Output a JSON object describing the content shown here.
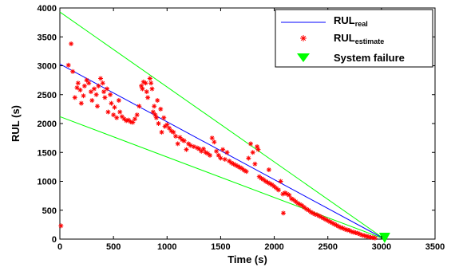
{
  "chart_data": {
    "type": "scatter",
    "xlabel": "Time (s)",
    "ylabel": "RUL (s)",
    "xlim": [
      0,
      3500
    ],
    "ylim": [
      0,
      4000
    ],
    "xticks": [
      "0",
      "500",
      "1000",
      "1500",
      "2000",
      "2500",
      "3000",
      "3500"
    ],
    "yticks": [
      "0",
      "500",
      "1000",
      "1500",
      "2000",
      "2500",
      "3000",
      "3500",
      "4000"
    ],
    "grid": false,
    "legend_position": "top-right",
    "legend": [
      {
        "main": "RUL",
        "sub": "real",
        "marker": "line",
        "color": "#0000ff"
      },
      {
        "main": "RUL",
        "sub": "estimate",
        "marker": "star",
        "color": "#ff0000"
      },
      {
        "main": "System failure",
        "sub": "",
        "marker": "triangle",
        "color": "#00ff00"
      }
    ],
    "series": [
      {
        "name": "RUL_real",
        "kind": "line",
        "color": "#0000ff",
        "points": [
          [
            0,
            3030
          ],
          [
            3030,
            0
          ]
        ]
      },
      {
        "name": "upper_bound",
        "kind": "line",
        "color": "#00ff00",
        "points": [
          [
            0,
            3930
          ],
          [
            3030,
            0
          ]
        ]
      },
      {
        "name": "lower_bound",
        "kind": "line",
        "color": "#00ff00",
        "points": [
          [
            0,
            2120
          ],
          [
            3030,
            0
          ]
        ]
      },
      {
        "name": "RUL_estimate",
        "kind": "scatter",
        "color": "#ff0000",
        "points": [
          [
            10,
            230
          ],
          [
            80,
            3010
          ],
          [
            105,
            3380
          ],
          [
            120,
            2900
          ],
          [
            140,
            2450
          ],
          [
            160,
            2620
          ],
          [
            170,
            2700
          ],
          [
            190,
            2580
          ],
          [
            200,
            2350
          ],
          [
            220,
            2480
          ],
          [
            230,
            2650
          ],
          [
            250,
            2750
          ],
          [
            270,
            2700
          ],
          [
            290,
            2550
          ],
          [
            300,
            2400
          ],
          [
            320,
            2600
          ],
          [
            340,
            2500
          ],
          [
            350,
            2300
          ],
          [
            360,
            2650
          ],
          [
            380,
            2780
          ],
          [
            400,
            2700
          ],
          [
            410,
            2550
          ],
          [
            420,
            2450
          ],
          [
            440,
            2600
          ],
          [
            450,
            2200
          ],
          [
            470,
            2500
          ],
          [
            480,
            2350
          ],
          [
            500,
            2150
          ],
          [
            510,
            2280
          ],
          [
            530,
            2100
          ],
          [
            550,
            2400
          ],
          [
            560,
            2200
          ],
          [
            580,
            2120
          ],
          [
            600,
            2080
          ],
          [
            620,
            2050
          ],
          [
            640,
            2060
          ],
          [
            660,
            2030
          ],
          [
            680,
            2020
          ],
          [
            700,
            2080
          ],
          [
            720,
            2150
          ],
          [
            740,
            2300
          ],
          [
            760,
            2650
          ],
          [
            770,
            2600
          ],
          [
            780,
            2720
          ],
          [
            800,
            2700
          ],
          [
            810,
            2550
          ],
          [
            820,
            2450
          ],
          [
            840,
            2780
          ],
          [
            850,
            2700
          ],
          [
            860,
            2600
          ],
          [
            870,
            2200
          ],
          [
            880,
            2300
          ],
          [
            890,
            2150
          ],
          [
            900,
            2100
          ],
          [
            910,
            2400
          ],
          [
            920,
            2000
          ],
          [
            940,
            2250
          ],
          [
            950,
            1850
          ],
          [
            970,
            2100
          ],
          [
            980,
            1950
          ],
          [
            1000,
            1980
          ],
          [
            1020,
            1920
          ],
          [
            1040,
            1870
          ],
          [
            1060,
            1850
          ],
          [
            1080,
            1780
          ],
          [
            1100,
            1650
          ],
          [
            1120,
            1760
          ],
          [
            1140,
            1720
          ],
          [
            1160,
            1700
          ],
          [
            1180,
            1550
          ],
          [
            1200,
            1650
          ],
          [
            1220,
            1620
          ],
          [
            1250,
            1600
          ],
          [
            1280,
            1580
          ],
          [
            1300,
            1560
          ],
          [
            1320,
            1520
          ],
          [
            1340,
            1560
          ],
          [
            1360,
            1500
          ],
          [
            1380,
            1480
          ],
          [
            1400,
            1450
          ],
          [
            1420,
            1750
          ],
          [
            1440,
            1680
          ],
          [
            1460,
            1520
          ],
          [
            1480,
            1450
          ],
          [
            1500,
            1400
          ],
          [
            1520,
            1550
          ],
          [
            1540,
            1380
          ],
          [
            1560,
            1500
          ],
          [
            1580,
            1350
          ],
          [
            1600,
            1320
          ],
          [
            1620,
            1300
          ],
          [
            1640,
            1280
          ],
          [
            1660,
            1260
          ],
          [
            1680,
            1240
          ],
          [
            1700,
            1220
          ],
          [
            1720,
            1190
          ],
          [
            1740,
            1170
          ],
          [
            1760,
            1400
          ],
          [
            1780,
            1650
          ],
          [
            1800,
            1500
          ],
          [
            1820,
            1300
          ],
          [
            1840,
            1600
          ],
          [
            1850,
            1550
          ],
          [
            1860,
            1080
          ],
          [
            1880,
            1050
          ],
          [
            1900,
            1030
          ],
          [
            1920,
            1000
          ],
          [
            1940,
            980
          ],
          [
            1950,
            1200
          ],
          [
            1960,
            960
          ],
          [
            1980,
            940
          ],
          [
            2000,
            910
          ],
          [
            2020,
            880
          ],
          [
            2040,
            850
          ],
          [
            2060,
            1000
          ],
          [
            2080,
            780
          ],
          [
            2085,
            450
          ],
          [
            2100,
            800
          ],
          [
            2120,
            780
          ],
          [
            2140,
            760
          ],
          [
            2160,
            700
          ],
          [
            2180,
            680
          ],
          [
            2200,
            650
          ],
          [
            2220,
            620
          ],
          [
            2240,
            600
          ],
          [
            2260,
            580
          ],
          [
            2280,
            550
          ],
          [
            2300,
            520
          ],
          [
            2320,
            500
          ],
          [
            2340,
            470
          ],
          [
            2360,
            450
          ],
          [
            2380,
            430
          ],
          [
            2400,
            420
          ],
          [
            2420,
            400
          ],
          [
            2440,
            380
          ],
          [
            2460,
            360
          ],
          [
            2480,
            340
          ],
          [
            2500,
            320
          ],
          [
            2520,
            300
          ],
          [
            2540,
            280
          ],
          [
            2560,
            260
          ],
          [
            2580,
            240
          ],
          [
            2600,
            220
          ],
          [
            2620,
            200
          ],
          [
            2640,
            190
          ],
          [
            2660,
            170
          ],
          [
            2680,
            160
          ],
          [
            2700,
            150
          ],
          [
            2720,
            130
          ],
          [
            2740,
            120
          ],
          [
            2760,
            110
          ],
          [
            2780,
            100
          ],
          [
            2800,
            85
          ],
          [
            2820,
            70
          ],
          [
            2840,
            60
          ],
          [
            2860,
            50
          ],
          [
            2880,
            40
          ],
          [
            2900,
            30
          ],
          [
            2920,
            25
          ],
          [
            2940,
            18
          ]
        ]
      },
      {
        "name": "System failure",
        "kind": "marker",
        "color": "#00ff00",
        "points": [
          [
            3030,
            0
          ]
        ]
      }
    ]
  }
}
